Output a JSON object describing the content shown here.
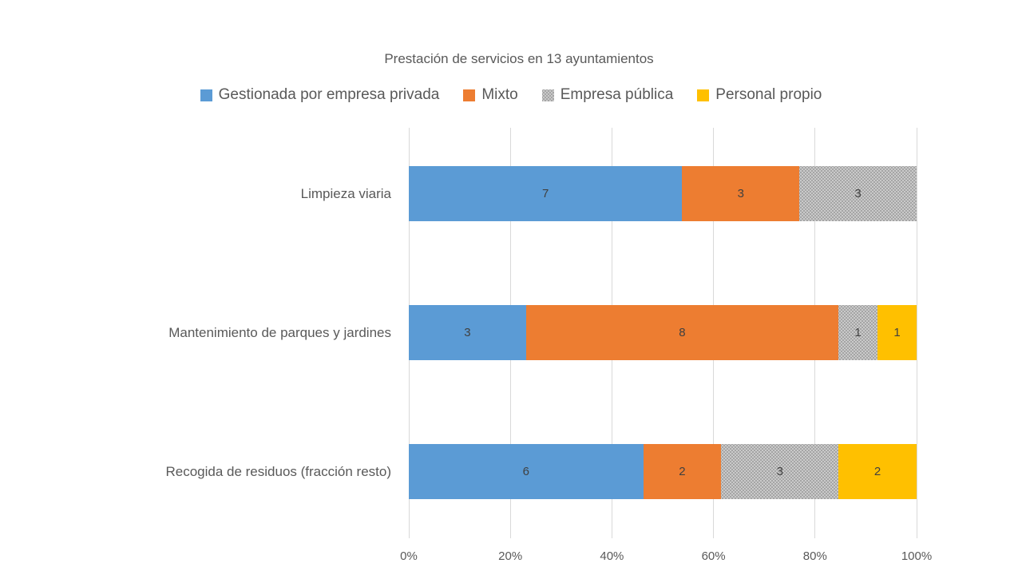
{
  "chart_data": {
    "type": "bar",
    "orientation": "horizontal",
    "stacked": "100%",
    "title": "Prestación de servicios en 13 ayuntamientos",
    "categories": [
      "Limpieza viaria",
      "Mantenimiento de parques y jardines",
      "Recogida de residuos (fracción resto)"
    ],
    "series": [
      {
        "name": "Gestionada por empresa privada",
        "color": "#5B9BD5",
        "pattern": false,
        "values": [
          7,
          3,
          6
        ]
      },
      {
        "name": "Mixto",
        "color": "#ED7D31",
        "pattern": false,
        "values": [
          3,
          8,
          2
        ]
      },
      {
        "name": "Empresa pública",
        "color": "#A5A5A5",
        "pattern": true,
        "values": [
          3,
          1,
          3
        ]
      },
      {
        "name": "Personal propio",
        "color": "#FFC000",
        "pattern": false,
        "values": [
          0,
          1,
          2
        ]
      }
    ],
    "category_total": 13,
    "x_axis": {
      "ticks": [
        "0%",
        "20%",
        "40%",
        "60%",
        "80%",
        "100%"
      ],
      "min": "0%",
      "max": "100%"
    },
    "gridlines": true,
    "data_labels": true,
    "legend_position": "top"
  },
  "style": {
    "title_color": "#595959",
    "axis_text_color": "#595959",
    "data_label_color": "#404040",
    "gridline_color": "#D9D9D9",
    "background": "#FFFFFF"
  }
}
